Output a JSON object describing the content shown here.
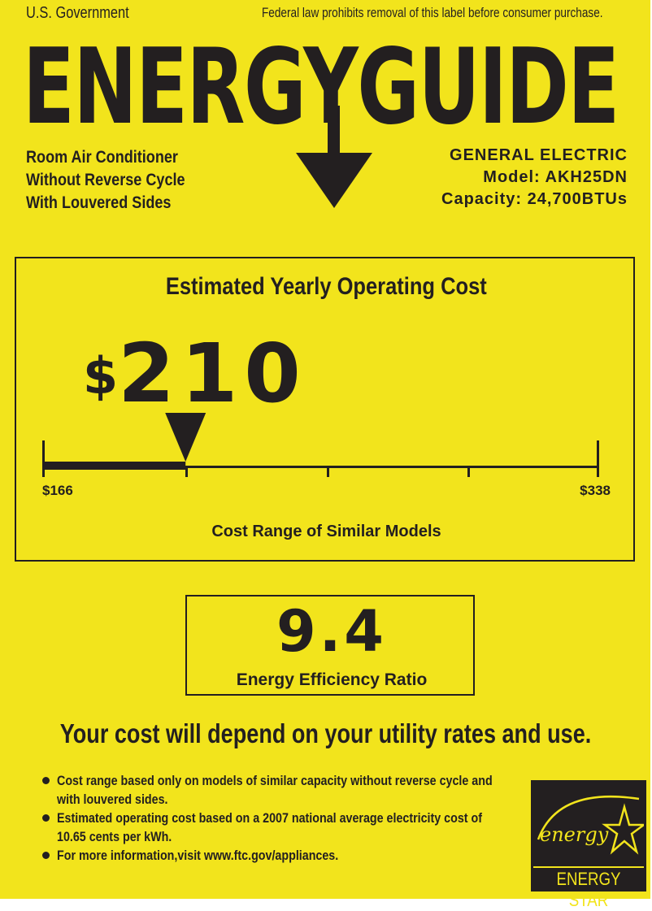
{
  "header": {
    "government": "U.S. Government",
    "notice": "Federal law prohibits removal of this label before consumer purchase.",
    "title": "ENERGYGUIDE"
  },
  "product": {
    "type_lines": [
      "Room Air Conditioner",
      "Without Reverse Cycle",
      "With Louvered Sides"
    ],
    "manufacturer": "GENERAL ELECTRIC",
    "model": "Model: AKH25DN",
    "capacity": "Capacity: 24,700BTUs"
  },
  "cost": {
    "title": "Estimated Yearly Operating Cost",
    "currency": "$",
    "value": "210",
    "range_low": "$166",
    "range_high": "$338",
    "range_caption": "Cost Range of Similar Models",
    "scale": {
      "min": 166,
      "max": 338,
      "marker": 210
    }
  },
  "efficiency": {
    "value": "9.4",
    "label": "Energy Efficiency Ratio"
  },
  "disclaimer": "Your cost will depend on your utility rates and use.",
  "notes": [
    [
      "Cost range based only on models of similar capacity without reverse cycle and",
      "with louvered sides."
    ],
    [
      "Estimated operating cost based on a 2007 national average electricity cost of",
      "10.65 cents per kWh."
    ],
    [
      "For more information,visit www.ftc.gov/appliances."
    ]
  ],
  "logo": {
    "script": "energy",
    "label": "ENERGY STAR",
    "icon": "energy-star-logo"
  },
  "colors": {
    "background": "#f2e41c",
    "ink": "#231f20"
  }
}
